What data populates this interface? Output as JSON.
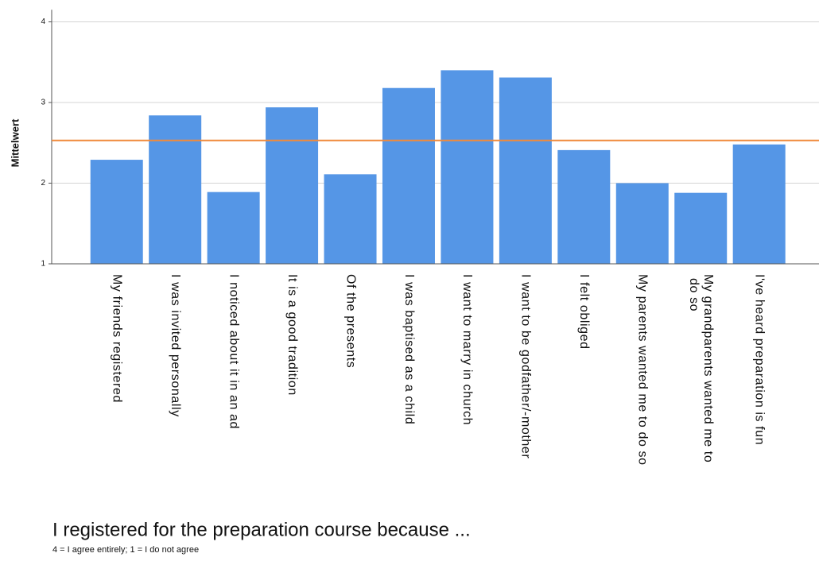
{
  "chart_data": {
    "type": "bar",
    "title": "I registered for the preparation course because ...",
    "subtitle": "4 = I agree entirely; 1 = I do not agree",
    "y_label": "Mittelwert",
    "categories": [
      "My friends registered",
      "I was invited personally",
      "I noticed about it in an ad",
      "It is a good tradition",
      "Of the presents",
      "I was baptised as a child",
      "I want to marry in church",
      "I want to be godfather/-mother",
      "I felt obliged",
      "My parents wanted me to do so",
      "My grandparents wanted me to do so",
      "I've heard preparation is fun"
    ],
    "values": [
      2.29,
      2.84,
      1.89,
      2.94,
      2.11,
      3.18,
      3.4,
      3.31,
      2.41,
      2.0,
      1.88,
      2.48
    ],
    "color": "#5596e6",
    "reference_line": {
      "value": 2.53,
      "color": "#f08a3c"
    },
    "ylim": [
      1,
      4.15
    ],
    "yticks": [
      1,
      2,
      3,
      4
    ],
    "grid": true
  }
}
